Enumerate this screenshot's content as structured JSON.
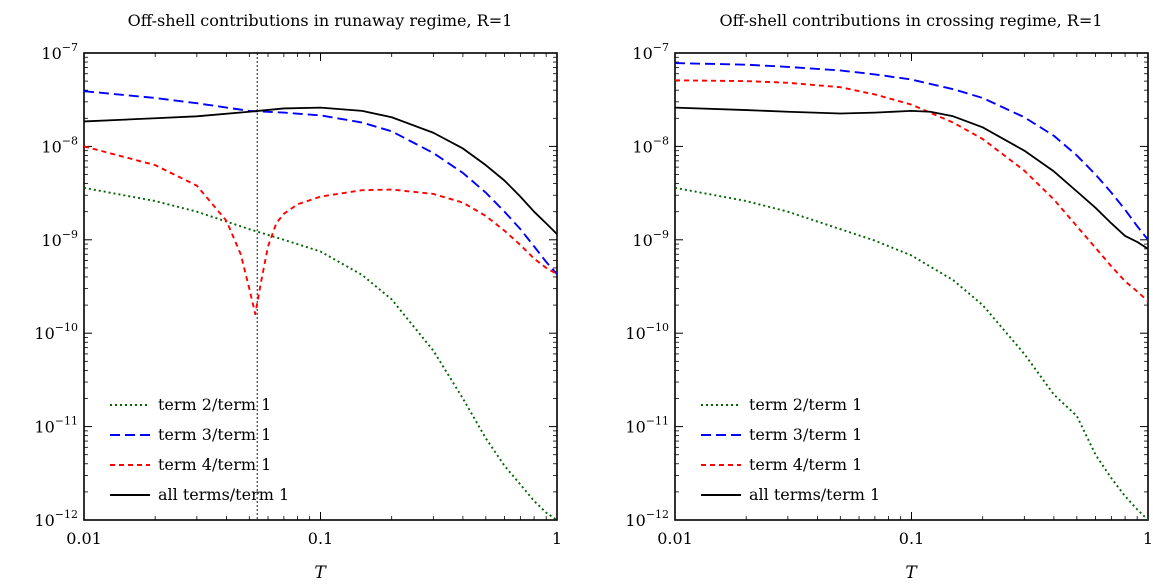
{
  "chart_data": [
    {
      "type": "line",
      "title": "Off-shell contributions in runaway regime, R=1",
      "xlabel": "T",
      "ylabel": "",
      "xscale": "log",
      "yscale": "log",
      "xlim": [
        0.01,
        1
      ],
      "ylim": [
        1e-12,
        1e-07
      ],
      "xticks": [
        "0.01",
        "0.1",
        "1"
      ],
      "yticks": [
        {
          "base": "10",
          "exp": "−7"
        },
        {
          "base": "10",
          "exp": "−8"
        },
        {
          "base": "10",
          "exp": "−9"
        },
        {
          "base": "10",
          "exp": "−10"
        },
        {
          "base": "10",
          "exp": "−11"
        },
        {
          "base": "10",
          "exp": "−12"
        }
      ],
      "legend_position": "bottom-left",
      "grid": false,
      "vline": 0.054,
      "series": [
        {
          "name": "term 2/term 1",
          "color": "#006400",
          "dash": "dotted",
          "x": [
            0.01,
            0.02,
            0.03,
            0.05,
            0.07,
            0.1,
            0.15,
            0.2,
            0.3,
            0.4,
            0.5,
            0.6,
            0.7,
            0.8,
            0.9,
            1.0
          ],
          "y": [
            3.6e-09,
            2.6e-09,
            2e-09,
            1.3e-09,
            1e-09,
            7.5e-10,
            4.2e-10,
            2.3e-10,
            6.5e-11,
            2e-11,
            7.5e-12,
            3.8e-12,
            2.4e-12,
            1.6e-12,
            1.2e-12,
            1e-12
          ]
        },
        {
          "name": "term 3/term 1",
          "color": "#0000ff",
          "dash": "dashed",
          "x": [
            0.01,
            0.02,
            0.03,
            0.05,
            0.07,
            0.1,
            0.15,
            0.2,
            0.3,
            0.4,
            0.5,
            0.6,
            0.7,
            0.8,
            0.9,
            1.0
          ],
          "y": [
            3.9e-08,
            3.3e-08,
            2.9e-08,
            2.4e-08,
            2.3e-08,
            2.15e-08,
            1.8e-08,
            1.45e-08,
            8.5e-09,
            5.2e-09,
            3.2e-09,
            2e-09,
            1.3e-09,
            8.5e-10,
            5.8e-10,
            4.3e-10
          ]
        },
        {
          "name": "term 4/term 1",
          "color": "#ff0000",
          "dash": "dashed-short",
          "x": [
            0.01,
            0.02,
            0.03,
            0.04,
            0.046,
            0.05,
            0.053,
            0.056,
            0.06,
            0.065,
            0.07,
            0.08,
            0.1,
            0.15,
            0.2,
            0.3,
            0.4,
            0.5,
            0.6,
            0.7,
            0.8,
            0.9,
            1.0
          ],
          "y": [
            1e-08,
            6.3e-09,
            3.8e-09,
            1.6e-09,
            7e-10,
            3e-10,
            1.6e-10,
            3.5e-10,
            8.5e-10,
            1.5e-09,
            1.9e-09,
            2.4e-09,
            2.9e-09,
            3.4e-09,
            3.45e-09,
            3.1e-09,
            2.5e-09,
            1.8e-09,
            1.25e-09,
            8.8e-10,
            6.3e-10,
            5e-10,
            4.3e-10
          ]
        },
        {
          "name": "all terms/term 1",
          "color": "#000000",
          "dash": "solid",
          "x": [
            0.01,
            0.02,
            0.03,
            0.05,
            0.07,
            0.1,
            0.15,
            0.2,
            0.3,
            0.4,
            0.5,
            0.6,
            0.7,
            0.8,
            0.9,
            1.0
          ],
          "y": [
            1.85e-08,
            2e-08,
            2.1e-08,
            2.35e-08,
            2.55e-08,
            2.6e-08,
            2.4e-08,
            2.05e-08,
            1.4e-08,
            9.5e-09,
            6.3e-09,
            4.3e-09,
            2.9e-09,
            2e-09,
            1.5e-09,
            1.15e-09
          ]
        }
      ]
    },
    {
      "type": "line",
      "title": "Off-shell contributions in crossing regime, R=1",
      "xlabel": "T",
      "ylabel": "",
      "xscale": "log",
      "yscale": "log",
      "xlim": [
        0.01,
        1
      ],
      "ylim": [
        1e-12,
        1e-07
      ],
      "xticks": [
        "0.01",
        "0.1",
        "1"
      ],
      "yticks": [
        {
          "base": "10",
          "exp": "−7"
        },
        {
          "base": "10",
          "exp": "−8"
        },
        {
          "base": "10",
          "exp": "−9"
        },
        {
          "base": "10",
          "exp": "−10"
        },
        {
          "base": "10",
          "exp": "−11"
        },
        {
          "base": "10",
          "exp": "−12"
        }
      ],
      "legend_position": "bottom-left",
      "grid": false,
      "series": [
        {
          "name": "term 2/term 1",
          "color": "#006400",
          "dash": "dotted",
          "x": [
            0.01,
            0.02,
            0.03,
            0.05,
            0.07,
            0.1,
            0.15,
            0.2,
            0.3,
            0.4,
            0.5,
            0.6,
            0.7,
            0.8,
            0.9,
            1.0
          ],
          "y": [
            3.6e-09,
            2.6e-09,
            2e-09,
            1.3e-09,
            9.8e-10,
            6.8e-10,
            3.7e-10,
            2e-10,
            6e-11,
            2.2e-11,
            1.3e-11,
            5e-12,
            2.8e-12,
            1.8e-12,
            1.3e-12,
            1e-12
          ]
        },
        {
          "name": "term 3/term 1",
          "color": "#0000ff",
          "dash": "dashed",
          "x": [
            0.01,
            0.02,
            0.03,
            0.05,
            0.07,
            0.1,
            0.15,
            0.2,
            0.3,
            0.4,
            0.5,
            0.6,
            0.7,
            0.8,
            0.9,
            1.0
          ],
          "y": [
            7.8e-08,
            7.5e-08,
            7.1e-08,
            6.5e-08,
            5.9e-08,
            5.2e-08,
            4.1e-08,
            3.3e-08,
            2.05e-08,
            1.3e-08,
            8e-09,
            5e-09,
            3.2e-09,
            2.1e-09,
            1.4e-09,
            1e-09
          ]
        },
        {
          "name": "term 4/term 1",
          "color": "#ff0000",
          "dash": "dashed-short",
          "x": [
            0.01,
            0.02,
            0.03,
            0.05,
            0.07,
            0.1,
            0.15,
            0.2,
            0.3,
            0.4,
            0.5,
            0.6,
            0.7,
            0.8,
            0.9,
            1.0
          ],
          "y": [
            5.1e-08,
            5e-08,
            4.8e-08,
            4.3e-08,
            3.6e-08,
            2.8e-08,
            1.8e-08,
            1.2e-08,
            5.5e-09,
            2.7e-09,
            1.4e-09,
            8.2e-10,
            5.2e-10,
            3.6e-10,
            2.8e-10,
            2.2e-10
          ]
        },
        {
          "name": "all terms/term 1",
          "color": "#000000",
          "dash": "solid",
          "x": [
            0.01,
            0.02,
            0.03,
            0.05,
            0.07,
            0.1,
            0.12,
            0.15,
            0.2,
            0.3,
            0.4,
            0.5,
            0.6,
            0.7,
            0.8,
            0.9,
            1.0
          ],
          "y": [
            2.6e-08,
            2.45e-08,
            2.35e-08,
            2.25e-08,
            2.3e-08,
            2.4e-08,
            2.35e-08,
            2.1e-08,
            1.6e-08,
            9e-09,
            5.4e-09,
            3.3e-09,
            2.2e-09,
            1.5e-09,
            1.1e-09,
            9.5e-10,
            8e-10
          ]
        }
      ]
    }
  ]
}
